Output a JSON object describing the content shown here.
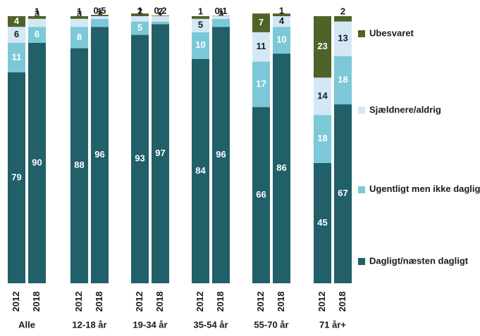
{
  "chart_data": {
    "type": "stacked-bar",
    "groups": [
      "Alle",
      "12-18 år",
      "19-34 år",
      "35-54 år",
      "55-70 år",
      "71 år+"
    ],
    "categories": [
      "2012",
      "2018",
      "2012",
      "2018",
      "2012",
      "2018",
      "2012",
      "2018",
      "2012",
      "2018",
      "2012",
      "2018"
    ],
    "ylim": [
      0,
      100
    ],
    "series": [
      {
        "name": "Dagligt/næsten dagligt",
        "color": "#215f69",
        "label_color": "#ffffff",
        "values": [
          79,
          90,
          88,
          96,
          93,
          97,
          84,
          96,
          66,
          86,
          45,
          67
        ]
      },
      {
        "name": "Ugentligt men ikke dagligt",
        "color": "#7cc8d8",
        "label_color": "#ffffff",
        "values": [
          11,
          6,
          8,
          3,
          5,
          1,
          10,
          3,
          17,
          10,
          18,
          18
        ]
      },
      {
        "name": "Sjældnere/aldrig",
        "color": "#d3e8f4",
        "label_color": "#1a1a1a",
        "values": [
          6,
          3,
          3,
          1,
          2,
          2,
          5,
          1,
          11,
          4,
          14,
          13
        ]
      },
      {
        "name": "Ubesvaret",
        "color": "#4f6228",
        "label_color": "#ffffff",
        "values": [
          4,
          1,
          1,
          0.5,
          1,
          0.2,
          1,
          0.1,
          7,
          1,
          23,
          2
        ],
        "value_labels": [
          "4",
          "1",
          "1",
          "0,5",
          "1",
          "0,2",
          "1",
          "0,1",
          "7",
          "1",
          "23",
          "2"
        ]
      }
    ]
  }
}
